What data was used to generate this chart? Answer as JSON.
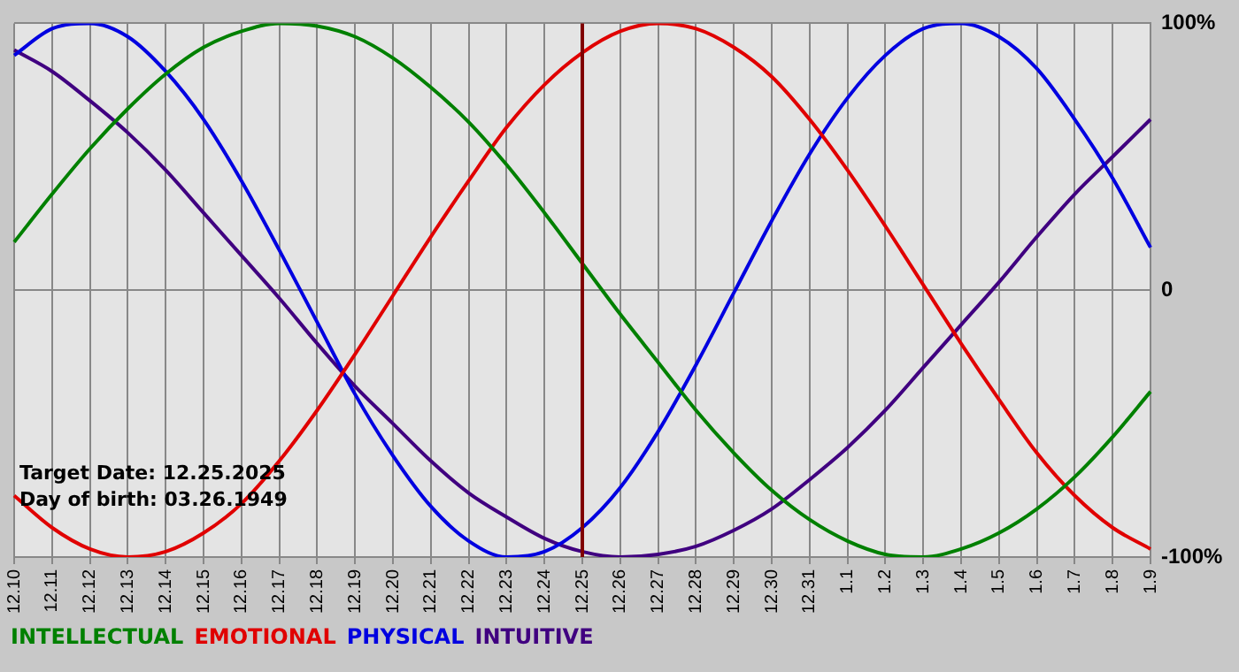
{
  "chart_data": {
    "type": "line",
    "categories": [
      "12.10",
      "12.11",
      "12.12",
      "12.13",
      "12.14",
      "12.15",
      "12.16",
      "12.17",
      "12.18",
      "12.19",
      "12.20",
      "12.21",
      "12.22",
      "12.23",
      "12.24",
      "12.25",
      "12.26",
      "12.27",
      "12.28",
      "12.29",
      "12.30",
      "12.31",
      "1.1",
      "1.2",
      "1.3",
      "1.4",
      "1.5",
      "1.6",
      "1.7",
      "1.8",
      "1.9"
    ],
    "series": [
      {
        "name": "INTELLECTUAL",
        "color": "#008000",
        "values": [
          18,
          36,
          53,
          68,
          81,
          91,
          97,
          100,
          99,
          95,
          87,
          76,
          63,
          47,
          29,
          10,
          -9,
          -27,
          -45,
          -61,
          -75,
          -86,
          -94,
          -99,
          -100,
          -97,
          -91,
          -82,
          -70,
          -55,
          -38
        ]
      },
      {
        "name": "EMOTIONAL",
        "color": "#e00000",
        "values": [
          -77,
          -89,
          -97,
          -100,
          -98,
          -91,
          -80,
          -64,
          -45,
          -24,
          -2,
          20,
          41,
          61,
          77,
          89,
          97,
          100,
          98,
          91,
          80,
          64,
          45,
          24,
          2,
          -20,
          -41,
          -61,
          -77,
          -89,
          -97
        ]
      },
      {
        "name": "PHYSICAL",
        "color": "#0000e0",
        "values": [
          88,
          98,
          100,
          95,
          82,
          64,
          41,
          15,
          -12,
          -39,
          -62,
          -81,
          -94,
          -100,
          -98,
          -89,
          -74,
          -53,
          -28,
          -1,
          26,
          51,
          72,
          88,
          98,
          100,
          95,
          83,
          64,
          42,
          16
        ]
      },
      {
        "name": "INTUITIVE",
        "color": "#400080",
        "values": [
          90,
          82,
          71,
          59,
          45,
          29,
          13,
          -3,
          -20,
          -36,
          -50,
          -64,
          -76,
          -85,
          -93,
          -98,
          -100,
          -99,
          -96,
          -90,
          -82,
          -71,
          -59,
          -45,
          -29,
          -13,
          3,
          20,
          36,
          50,
          64
        ]
      }
    ],
    "ylim": [
      -100,
      100
    ],
    "yticks": [
      {
        "value": 100,
        "label": "100%"
      },
      0,
      {
        "value": -100,
        "label": "-100%"
      }
    ],
    "ref_lines": [
      {
        "axis": "x",
        "value": "12.25",
        "color": "#800000"
      }
    ],
    "annotations": [
      "Target Date: 12.25.2025",
      "Day of birth: 03.26.1949"
    ],
    "grid": true,
    "legend": "bottom",
    "marker": "none",
    "line_style": "solid"
  }
}
